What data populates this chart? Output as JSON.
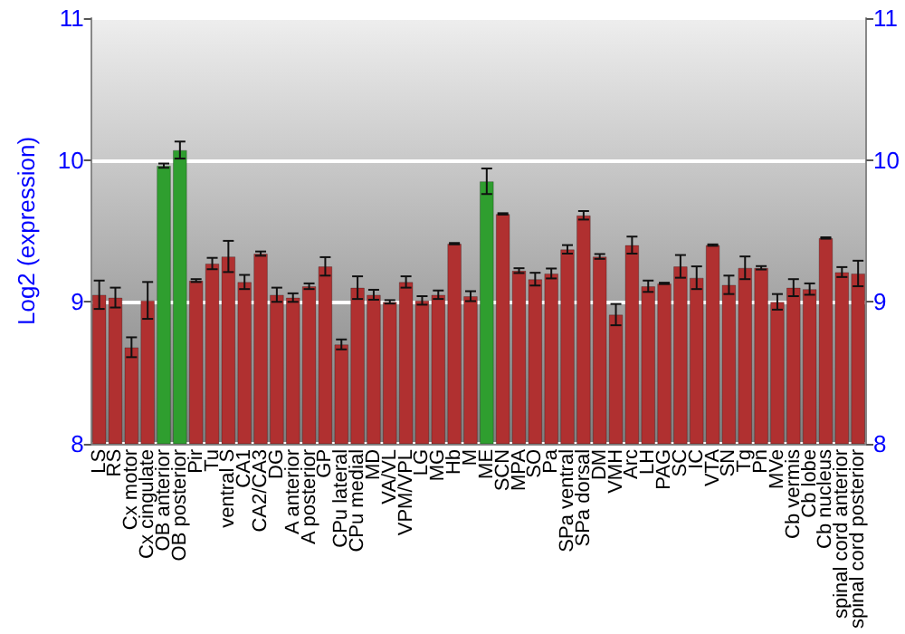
{
  "chart_data": {
    "type": "bar",
    "ylabel": "Log2 (expression)",
    "categories": [
      "LS",
      "RS",
      "Cx motor",
      "Cx cingulate",
      "OB anterior",
      "OB posterior",
      "Pir",
      "Tu",
      "ventral S",
      "CA1",
      "CA2/CA3",
      "DG",
      "A anterior",
      "A posterior",
      "GP",
      "CPu lateral",
      "CPu medial",
      "MD",
      "VA/VL",
      "VPM/VPL",
      "LG",
      "MG",
      "Hb",
      "M",
      "ME",
      "SCN",
      "MPA",
      "SO",
      "Pa",
      "SPa ventral",
      "SPa dorsal",
      "DM",
      "VMH",
      "Arc",
      "LH",
      "PAG",
      "SC",
      "IC",
      "VTA",
      "SN",
      "Tg",
      "Pn",
      "MVe",
      "Cb vermis",
      "Cb lobe",
      "Cb nucleus",
      "spinal cord anterior",
      "spinal cord posterior"
    ],
    "values": [
      9.05,
      9.03,
      8.68,
      9.01,
      9.96,
      10.07,
      9.15,
      9.27,
      9.32,
      9.14,
      9.34,
      9.05,
      9.03,
      9.11,
      9.25,
      8.7,
      9.1,
      9.05,
      9.0,
      9.14,
      9.01,
      9.05,
      9.41,
      9.04,
      9.85,
      9.62,
      9.22,
      9.16,
      9.2,
      9.37,
      9.61,
      9.32,
      8.91,
      9.4,
      9.11,
      9.13,
      9.25,
      9.17,
      9.4,
      9.12,
      9.24,
      9.24,
      9.0,
      9.1,
      9.09,
      9.45,
      9.21,
      9.2
    ],
    "errors": [
      0.1,
      0.07,
      0.07,
      0.13,
      0.015,
      0.06,
      0.01,
      0.04,
      0.11,
      0.05,
      0.015,
      0.05,
      0.03,
      0.02,
      0.065,
      0.035,
      0.08,
      0.035,
      0.012,
      0.04,
      0.03,
      0.03,
      0.005,
      0.035,
      0.09,
      0.005,
      0.017,
      0.045,
      0.035,
      0.03,
      0.03,
      0.017,
      0.075,
      0.06,
      0.04,
      0.005,
      0.08,
      0.08,
      0.005,
      0.065,
      0.08,
      0.012,
      0.055,
      0.06,
      0.04,
      0.005,
      0.035,
      0.09
    ],
    "colors": [
      "#b03030",
      "#b03030",
      "#b03030",
      "#b03030",
      "#2f9e2f",
      "#2f9e2f",
      "#b03030",
      "#b03030",
      "#b03030",
      "#b03030",
      "#b03030",
      "#b03030",
      "#b03030",
      "#b03030",
      "#b03030",
      "#b03030",
      "#b03030",
      "#b03030",
      "#b03030",
      "#b03030",
      "#b03030",
      "#b03030",
      "#b03030",
      "#b03030",
      "#2f9e2f",
      "#b03030",
      "#b03030",
      "#b03030",
      "#b03030",
      "#b03030",
      "#b03030",
      "#b03030",
      "#b03030",
      "#b03030",
      "#b03030",
      "#b03030",
      "#b03030",
      "#b03030",
      "#b03030",
      "#b03030",
      "#b03030",
      "#b03030",
      "#b03030",
      "#b03030",
      "#b03030",
      "#b03030",
      "#b03030",
      "#b03030"
    ],
    "ylim": [
      8,
      11
    ],
    "yticks": [
      8,
      9,
      10,
      11
    ],
    "y2lim": [
      8,
      11
    ],
    "y2ticks": [
      8,
      9,
      10,
      11
    ],
    "grid": "y"
  }
}
